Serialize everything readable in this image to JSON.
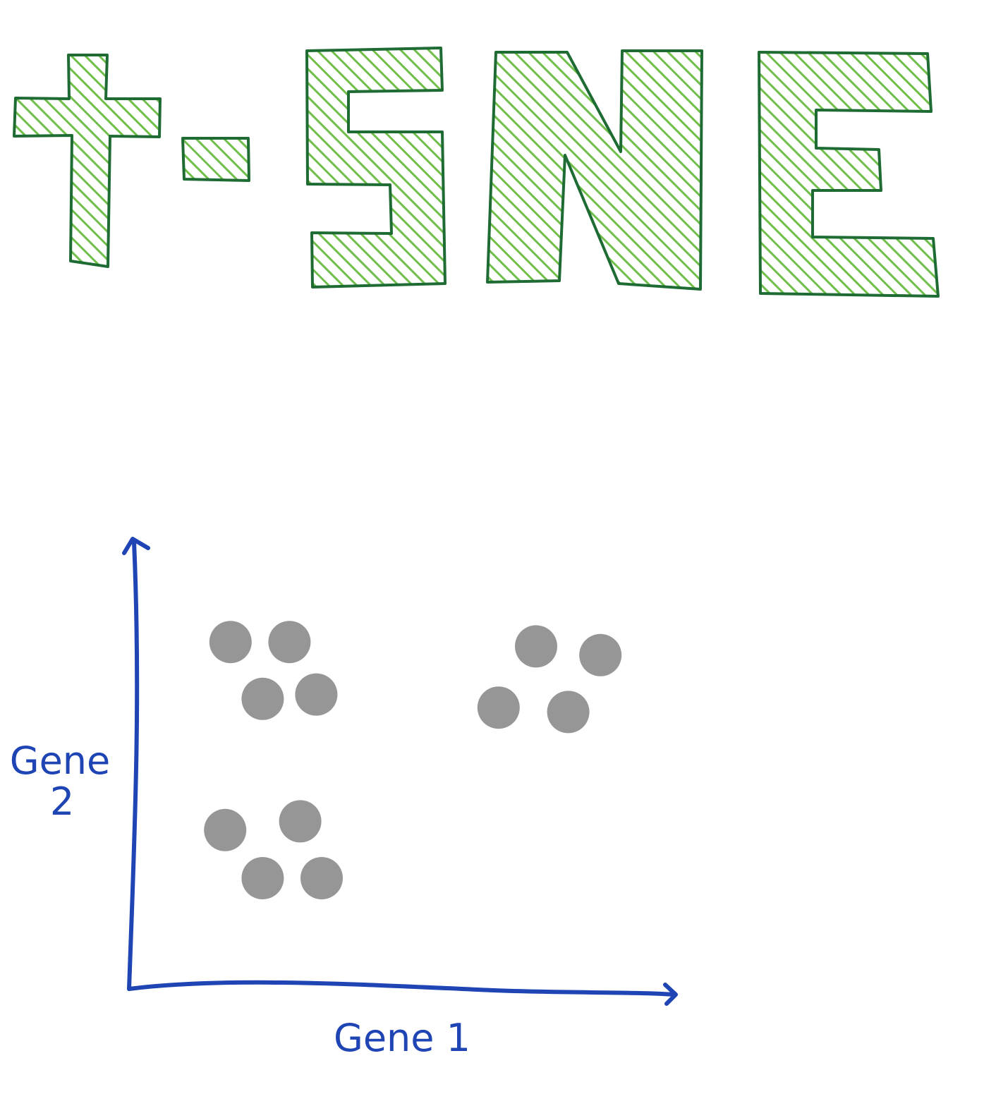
{
  "title": {
    "text": "t-SNE",
    "fill_color": "#6fbf4a",
    "stroke_color": "#1e6b34",
    "glyphs": [
      "t",
      "-",
      "S",
      "N",
      "E"
    ]
  },
  "chart_data": {
    "type": "scatter",
    "xlabel": "Gene 1",
    "ylabel_line1": "Gene",
    "ylabel_line2": "2",
    "axis_color": "#1f45b5",
    "point_color": "#969696",
    "ticks": false,
    "grid": false,
    "xlim": [
      0,
      10
    ],
    "ylim": [
      0,
      10
    ],
    "points": [
      {
        "x": 1.8,
        "y": 7.9,
        "cluster": 1
      },
      {
        "x": 2.9,
        "y": 7.9,
        "cluster": 1
      },
      {
        "x": 2.4,
        "y": 6.6,
        "cluster": 1
      },
      {
        "x": 3.4,
        "y": 6.7,
        "cluster": 1
      },
      {
        "x": 7.5,
        "y": 7.8,
        "cluster": 2
      },
      {
        "x": 8.7,
        "y": 7.6,
        "cluster": 2
      },
      {
        "x": 6.8,
        "y": 6.4,
        "cluster": 2
      },
      {
        "x": 8.1,
        "y": 6.3,
        "cluster": 2
      },
      {
        "x": 1.7,
        "y": 3.6,
        "cluster": 3
      },
      {
        "x": 3.1,
        "y": 3.8,
        "cluster": 3
      },
      {
        "x": 2.4,
        "y": 2.5,
        "cluster": 3
      },
      {
        "x": 3.5,
        "y": 2.5,
        "cluster": 3
      }
    ]
  }
}
